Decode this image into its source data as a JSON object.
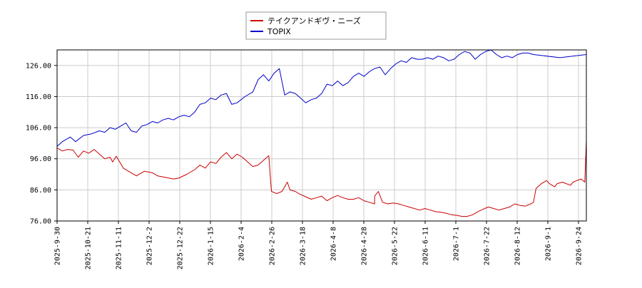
{
  "chart_data": {
    "type": "line",
    "x_dates": [
      "2025-9-30",
      "2025-10-21",
      "2025-11-11",
      "2025-12-2",
      "2025-12-22",
      "2026-1-15",
      "2026-2-4",
      "2026-2-26",
      "2026-3-18",
      "2026-4-8",
      "2026-4-28",
      "2026-5-22",
      "2026-6-11",
      "2026-7-1",
      "2026-7-22",
      "2026-8-12",
      "2026-9-1",
      "2026-9-24"
    ],
    "y_ticks": [
      "76.00",
      "86.00",
      "96.00",
      "106.00",
      "116.00",
      "126.00"
    ],
    "ylim": [
      76,
      131
    ],
    "grid": true,
    "legend_position": "top-center",
    "series": [
      {
        "name": "テイクアンドギヴ・ニーズ",
        "color": "#cc0000",
        "values": [
          99.5,
          98.5,
          99.0,
          98.8,
          96.5,
          98.5,
          97.8,
          99.0,
          97.5,
          96.0,
          96.5,
          95.0,
          96.8,
          93.0,
          91.5,
          90.5,
          92.0,
          91.5,
          90.5,
          90.0,
          89.5,
          89.8,
          90.2,
          91.0,
          92.5,
          94.0,
          93.0,
          95.0,
          94.5,
          96.5,
          98.0,
          96.0,
          97.5,
          96.5,
          95.0,
          93.5,
          94.0,
          95.5,
          97.0,
          85.5,
          84.8,
          85.5,
          87.0,
          88.5,
          86.0,
          85.5,
          84.5,
          83.8,
          83.0,
          83.5,
          84.0,
          82.5,
          83.5,
          84.2,
          83.5,
          83.0,
          83.0,
          83.5,
          82.5,
          82.0,
          81.5,
          84.0,
          85.5,
          82.0,
          81.5,
          81.8,
          81.5,
          81.0,
          80.5,
          80.0,
          79.5,
          80.0,
          79.5,
          79.0,
          78.8,
          78.5,
          78.0,
          77.8,
          77.5,
          77.5,
          78.0,
          79.0,
          79.8,
          80.5,
          80.0,
          79.5,
          80.0,
          80.5,
          81.5,
          81.0,
          80.8,
          81.5,
          82.0,
          86.5,
          88.0,
          89.0,
          88.0,
          87.5,
          87.0,
          88.0,
          88.5,
          88.0,
          87.5,
          88.5,
          89.0,
          89.5,
          88.5,
          102.0
        ],
        "x_frac": [
          0.0,
          0.01,
          0.02,
          0.03,
          0.04,
          0.05,
          0.06,
          0.07,
          0.08,
          0.09,
          0.1,
          0.105,
          0.112,
          0.125,
          0.14,
          0.15,
          0.165,
          0.18,
          0.19,
          0.205,
          0.22,
          0.23,
          0.235,
          0.245,
          0.26,
          0.27,
          0.28,
          0.29,
          0.3,
          0.31,
          0.32,
          0.33,
          0.34,
          0.35,
          0.36,
          0.37,
          0.38,
          0.39,
          0.4,
          0.405,
          0.415,
          0.425,
          0.43,
          0.435,
          0.44,
          0.45,
          0.46,
          0.47,
          0.48,
          0.49,
          0.5,
          0.51,
          0.52,
          0.53,
          0.54,
          0.55,
          0.56,
          0.57,
          0.58,
          0.59,
          0.6,
          0.6,
          0.607,
          0.615,
          0.625,
          0.635,
          0.645,
          0.655,
          0.665,
          0.675,
          0.685,
          0.695,
          0.705,
          0.715,
          0.725,
          0.735,
          0.745,
          0.755,
          0.765,
          0.775,
          0.785,
          0.795,
          0.805,
          0.815,
          0.825,
          0.835,
          0.845,
          0.855,
          0.865,
          0.875,
          0.885,
          0.895,
          0.9,
          0.905,
          0.915,
          0.925,
          0.93,
          0.935,
          0.94,
          0.945,
          0.955,
          0.962,
          0.97,
          0.975,
          0.982,
          0.99,
          0.997,
          1.0
        ]
      },
      {
        "name": "TOPIX",
        "color": "#0000cc",
        "values": [
          100.0,
          101.5,
          103.0,
          101.5,
          103.5,
          104.0,
          105.0,
          104.5,
          106.0,
          105.5,
          106.5,
          107.5,
          105.0,
          104.5,
          106.5,
          107.0,
          108.0,
          107.5,
          108.5,
          109.0,
          108.5,
          109.5,
          110.0,
          109.5,
          111.0,
          113.5,
          114.0,
          115.5,
          115.0,
          116.5,
          117.0,
          113.5,
          114.0,
          116.0,
          117.5,
          121.5,
          123.0,
          121.0,
          123.5,
          125.0,
          116.5,
          117.5,
          117.0,
          115.5,
          114.0,
          115.0,
          115.5,
          117.0,
          120.0,
          119.5,
          121.0,
          119.5,
          120.5,
          122.5,
          123.5,
          122.5,
          124.0,
          125.0,
          125.5,
          123.0,
          125.0,
          126.5,
          127.5,
          127.0,
          128.5,
          128.0,
          128.0,
          128.5,
          128.0,
          129.0,
          128.5,
          127.5,
          128.0,
          129.5,
          130.5,
          130.0,
          128.0,
          129.5,
          130.5,
          131.0,
          129.5,
          128.5,
          129.0,
          128.5,
          129.5,
          130.0,
          130.0,
          129.5,
          128.5,
          129.5
        ],
        "x_frac": [
          0.0,
          0.01,
          0.025,
          0.035,
          0.05,
          0.065,
          0.08,
          0.09,
          0.1,
          0.11,
          0.12,
          0.13,
          0.14,
          0.15,
          0.16,
          0.17,
          0.18,
          0.19,
          0.2,
          0.21,
          0.22,
          0.23,
          0.24,
          0.25,
          0.26,
          0.27,
          0.28,
          0.29,
          0.3,
          0.31,
          0.32,
          0.33,
          0.34,
          0.355,
          0.37,
          0.38,
          0.39,
          0.4,
          0.41,
          0.42,
          0.43,
          0.44,
          0.45,
          0.46,
          0.47,
          0.48,
          0.49,
          0.5,
          0.51,
          0.52,
          0.53,
          0.54,
          0.55,
          0.56,
          0.57,
          0.58,
          0.59,
          0.6,
          0.61,
          0.62,
          0.63,
          0.64,
          0.65,
          0.66,
          0.67,
          0.68,
          0.69,
          0.7,
          0.71,
          0.72,
          0.73,
          0.74,
          0.75,
          0.76,
          0.77,
          0.78,
          0.79,
          0.8,
          0.81,
          0.82,
          0.83,
          0.84,
          0.85,
          0.86,
          0.87,
          0.88,
          0.89,
          0.9,
          0.95,
          1.0
        ]
      }
    ]
  }
}
